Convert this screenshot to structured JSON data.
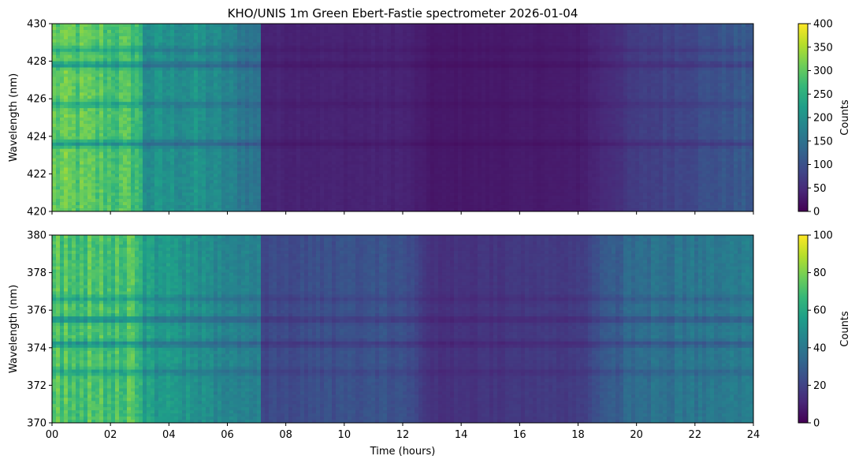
{
  "chart_data": {
    "type": "heatmap",
    "title": "KHO/UNIS 1m Green Ebert-Fastie spectrometer 2026-01-04",
    "xlabel": "Time (hours)",
    "x_ticks": [
      "00",
      "02",
      "04",
      "06",
      "08",
      "10",
      "12",
      "14",
      "16",
      "18",
      "20",
      "22",
      "24"
    ],
    "x_range": [
      0,
      24
    ],
    "colormap": "viridis",
    "panels": [
      {
        "ylabel": "Wavelength (nm)",
        "ylim": [
          420,
          430
        ],
        "y_ticks": [
          "420",
          "422",
          "424",
          "426",
          "428",
          "430"
        ],
        "colorbar": {
          "label": "Counts",
          "range": [
            0,
            400
          ],
          "ticks": [
            "0",
            "50",
            "100",
            "150",
            "200",
            "250",
            "300",
            "350",
            "400"
          ]
        },
        "dark_bands_nm": [
          423.6,
          427.8,
          428.6,
          425.7
        ],
        "time_profile": [
          [
            0,
            300
          ],
          [
            3,
            280
          ],
          [
            3.1,
            200
          ],
          [
            5,
            200
          ],
          [
            7.1,
            150
          ],
          [
            7.2,
            40
          ],
          [
            10,
            38
          ],
          [
            12,
            40
          ],
          [
            13,
            25
          ],
          [
            18,
            30
          ],
          [
            20,
            70
          ],
          [
            24,
            115
          ]
        ]
      },
      {
        "ylabel": "Wavelength (nm)",
        "ylim": [
          370,
          380
        ],
        "y_ticks": [
          "370",
          "372",
          "374",
          "376",
          "378",
          "380"
        ],
        "colorbar": {
          "label": "Counts",
          "range": [
            0,
            100
          ],
          "ticks": [
            "0",
            "20",
            "40",
            "60",
            "80",
            "100"
          ]
        },
        "dark_bands_nm": [
          375.5,
          374.2,
          372.7,
          376.6
        ],
        "time_profile": [
          [
            0,
            72
          ],
          [
            3,
            70
          ],
          [
            3.1,
            55
          ],
          [
            5,
            50
          ],
          [
            7.1,
            42
          ],
          [
            7.2,
            22
          ],
          [
            10,
            25
          ],
          [
            12,
            26
          ],
          [
            13,
            14
          ],
          [
            18,
            18
          ],
          [
            20,
            36
          ],
          [
            24,
            42
          ]
        ]
      }
    ]
  },
  "colors": {
    "viridis": [
      "#440154",
      "#482878",
      "#3e4989",
      "#31688e",
      "#26828e",
      "#1f9e89",
      "#35b779",
      "#6ece58",
      "#b5de2b",
      "#fde725"
    ]
  }
}
